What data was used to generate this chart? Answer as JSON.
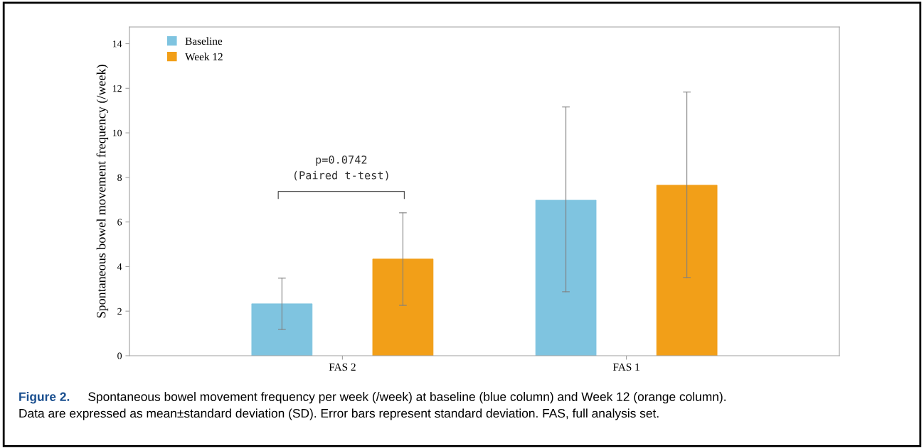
{
  "chart_data": {
    "type": "bar",
    "ylabel": "Spontaneous bowel movement frequency (/week)",
    "categories": [
      "FAS 2",
      "FAS 1"
    ],
    "series": [
      {
        "name": "Baseline",
        "color": "#7fc4e0",
        "values": [
          2.33,
          6.98
        ],
        "errors": [
          [
            1.18,
            3.48
          ],
          [
            2.87,
            11.16
          ]
        ]
      },
      {
        "name": "Week 12",
        "color": "#f29f18",
        "values": [
          4.34,
          7.65
        ],
        "errors": [
          [
            2.26,
            6.41
          ],
          [
            3.51,
            11.83
          ]
        ]
      }
    ],
    "ylim": [
      0,
      14.75
    ],
    "yticks": [
      0,
      2,
      4,
      6,
      8,
      10,
      12,
      14
    ],
    "grid": false,
    "legend": "top left",
    "annotations": [
      "p=0.0742\n(Paired t-test)",
      "Figure 2.",
      "Spontaneous bowel movement frequency per week (/week) at baseline (blue column) and Week 12 (orange column).\nData are expressed as mean±standard deviation (SD). Error bars represent standard deviation. FAS, full analysis set."
    ]
  }
}
